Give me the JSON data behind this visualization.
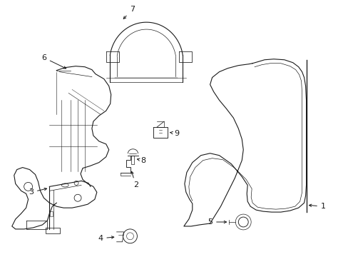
{
  "background_color": "#ffffff",
  "line_color": "#1a1a1a",
  "lw": 0.8,
  "fig_width": 4.89,
  "fig_height": 3.6,
  "dpi": 100,
  "fontsize": 8
}
